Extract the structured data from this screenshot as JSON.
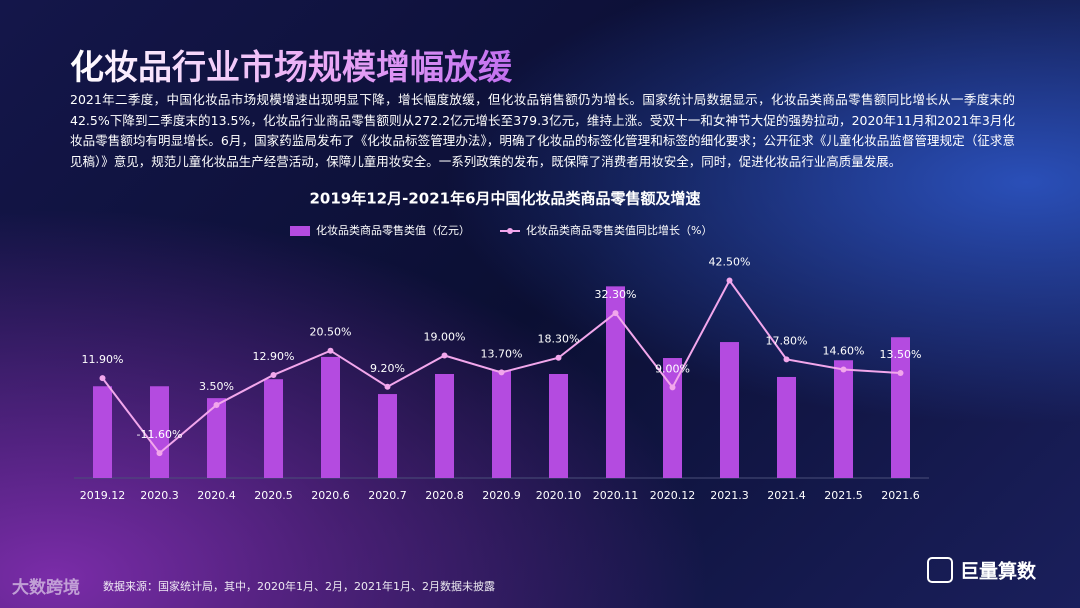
{
  "header": {
    "title": "化妆品行业市场规模增幅放缓",
    "body": "2021年二季度，中国化妆品市场规模增速出现明显下降，增长幅度放缓，但化妆品销售额仍为增长。国家统计局数据显示，化妆品类商品零售额同比增长从一季度末的42.5%下降到二季度末的13.5%，化妆品行业商品零售额则从272.2亿元增长至379.3亿元，维持上涨。受双十一和女神节大促的强势拉动，2020年11月和2021年3月化妆品零售额均有明显增长。6月，国家药监局发布了《化妆品标签管理办法》，明确了化妆品的标签化管理和标签的细化要求；公开征求《儿童化妆品监督管理规定（征求意见稿）》意见，规范儿童化妆品生产经营活动，保障儿童用妆安全。一系列政策的发布，既保障了消费者用妆安全，同时，促进化妆品行业高质量发展。"
  },
  "chart_data": {
    "type": "bar",
    "title": "2019年12月-2021年6月中国化妆品类商品零售额及增速",
    "categories": [
      "2019.12",
      "2020.3",
      "2020.4",
      "2020.5",
      "2020.6",
      "2020.7",
      "2020.8",
      "2020.9",
      "2020.10",
      "2020.11",
      "2020.12",
      "2021.3",
      "2021.4",
      "2021.5",
      "2021.6"
    ],
    "series": [
      {
        "name": "化妆品类商品零售类值（亿元）",
        "type": "bar",
        "color": "#b44be0",
        "values": [
          247,
          247,
          215,
          266,
          326,
          226,
          280,
          290,
          280,
          516,
          323,
          366,
          272,
          317,
          379
        ]
      },
      {
        "name": "化妆品类商品零售类值同比增长（%）",
        "type": "line",
        "axis": "y2",
        "color": "#f2a7ec",
        "values": [
          11.9,
          -11.6,
          3.5,
          12.9,
          20.5,
          9.2,
          19.0,
          13.7,
          18.3,
          32.3,
          9.0,
          42.5,
          17.8,
          14.6,
          13.5
        ],
        "value_labels": [
          "11.90%",
          "-11.60%",
          "3.50%",
          "12.90%",
          "20.50%",
          "9.20%",
          "19.00%",
          "13.70%",
          "18.30%",
          "32.30%",
          "9.00%",
          "42.50%",
          "17.80%",
          "14.60%",
          "13.50%"
        ]
      }
    ],
    "ylim": [
      0,
      560
    ],
    "y2lim": [
      -19.4,
      45.8
    ],
    "grid": false,
    "legend": "top"
  },
  "footer": {
    "source": "数据来源：国家统计局，其中，2020年1月、2月，2021年1月、2月数据未披露",
    "brand": "巨量算数",
    "watermark": "大数跨境"
  }
}
